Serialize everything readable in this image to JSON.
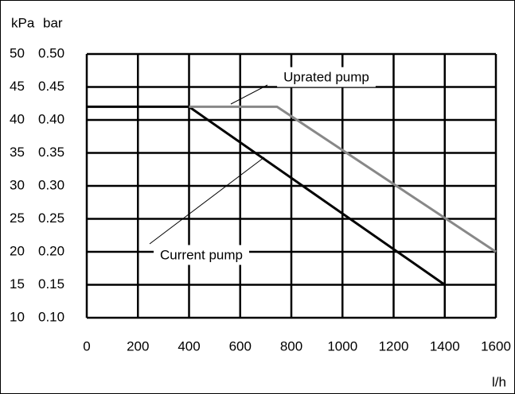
{
  "chart_data": {
    "type": "line",
    "y_label": "kPa",
    "y2_label": "bar",
    "x_label": "l/h",
    "x": [
      0,
      400,
      744,
      1400,
      1600
    ],
    "series": [
      {
        "name": "Current pump",
        "color": "#000000",
        "x": [
          0,
          400,
          1400
        ],
        "values": [
          42,
          42,
          15
        ]
      },
      {
        "name": "Uprated pump",
        "color": "#888888",
        "x": [
          400,
          744,
          1600
        ],
        "values": [
          42,
          42,
          20
        ]
      }
    ],
    "xlim": [
      0,
      1600
    ],
    "xticks": [
      0,
      200,
      400,
      600,
      800,
      1000,
      1200,
      1400,
      1600
    ],
    "ylim": [
      10,
      50
    ],
    "yticks": [
      10,
      15,
      20,
      25,
      30,
      35,
      40,
      45,
      50
    ],
    "y2lim": [
      0.1,
      0.5
    ],
    "y2ticks": [
      {
        "value": 0.1,
        "label": "0.10"
      },
      {
        "value": 0.15,
        "label": "0.15"
      },
      {
        "value": 0.2,
        "label": "0.20"
      },
      {
        "value": 0.25,
        "label": "0.25"
      },
      {
        "value": 0.3,
        "label": "0.30"
      },
      {
        "value": 0.35,
        "label": "0.35"
      },
      {
        "value": 0.4,
        "label": "0.40"
      },
      {
        "value": 0.45,
        "label": "0.45"
      },
      {
        "value": 0.5,
        "label": "0.50"
      }
    ],
    "grid": true
  }
}
